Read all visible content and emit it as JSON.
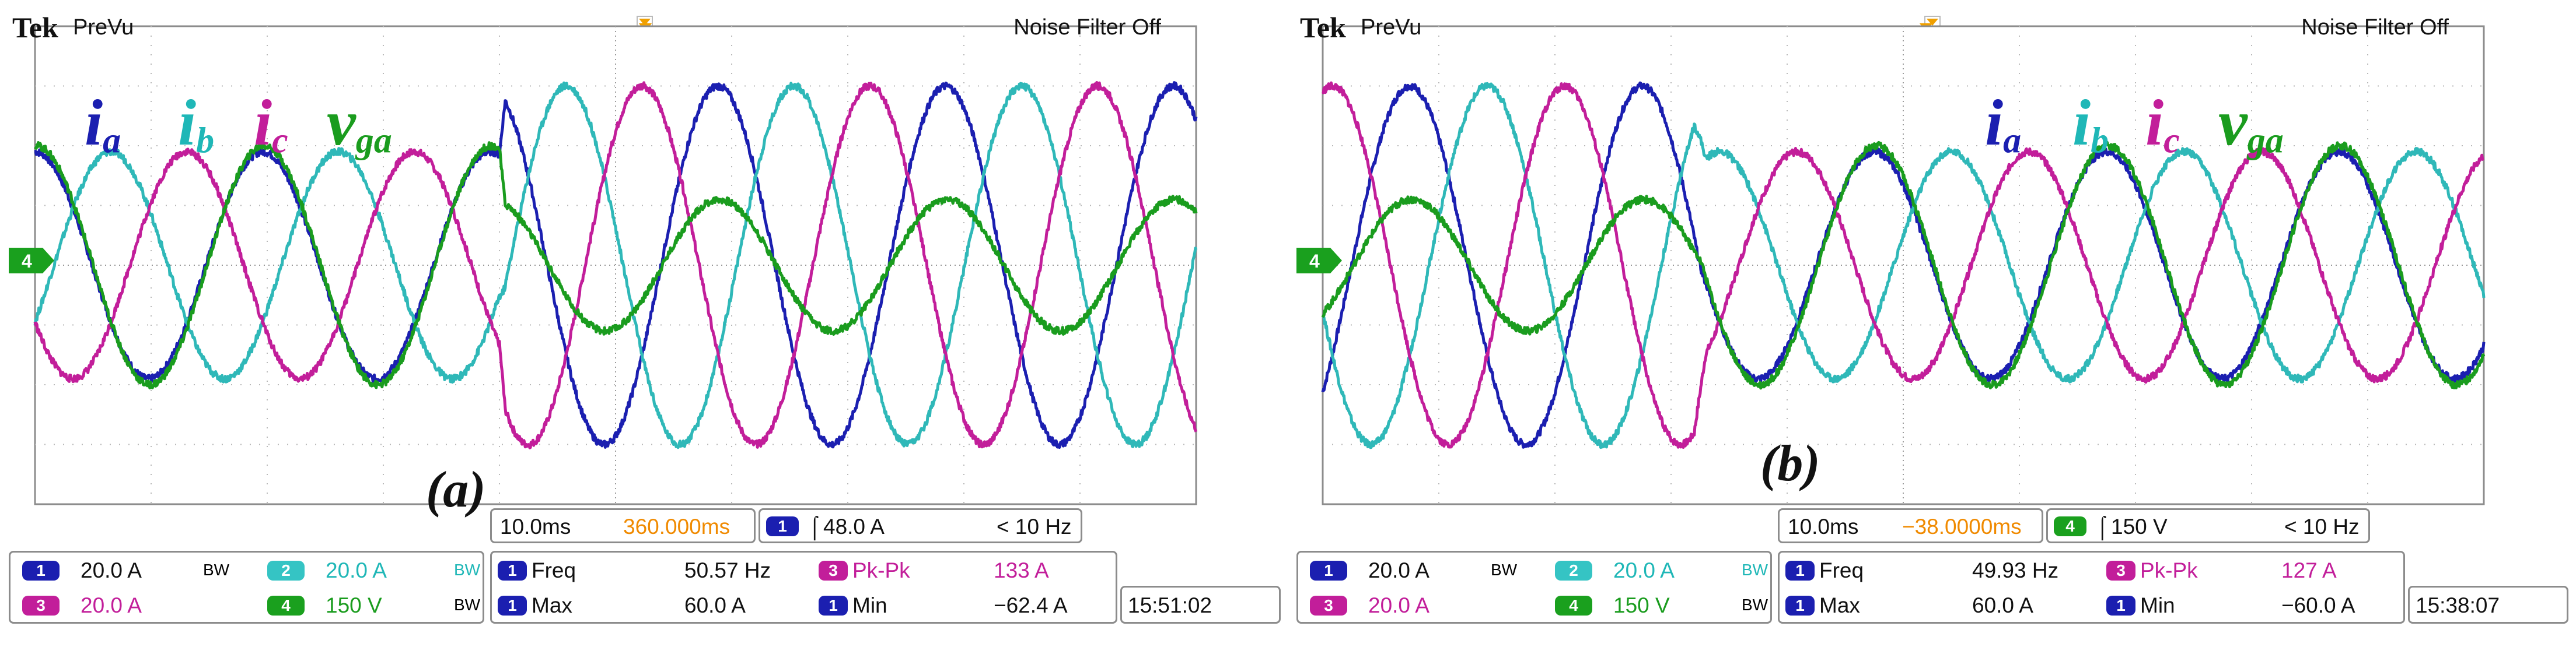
{
  "labels": {
    "ia": "i",
    "ia_sub": "a",
    "ib": "i",
    "ib_sub": "b",
    "ic": "i",
    "ic_sub": "c",
    "vga": "v",
    "vga_sub": "ga"
  },
  "scopes": [
    {
      "tag": "(a)",
      "brand": "Tek",
      "mode": "PreVu",
      "noise_filter": "Noise Filter Off",
      "timebase": "10.0ms",
      "delay": "360.000ms",
      "trigger": {
        "channel": "1",
        "level": "48.0 A",
        "freq": "< 10 Hz"
      },
      "channels": [
        {
          "id": "1",
          "scale": "20.0 A",
          "bw": "BW"
        },
        {
          "id": "2",
          "scale": "20.0 A",
          "bw": "BW"
        },
        {
          "id": "3",
          "scale": "20.0 A",
          "bw": ""
        },
        {
          "id": "4",
          "scale": "150 V",
          "bw": "BW"
        }
      ],
      "measurements": [
        {
          "ch": "1",
          "name": "Freq",
          "value": "50.57 Hz"
        },
        {
          "ch": "3",
          "name": "Pk-Pk",
          "value": "133 A"
        },
        {
          "ch": "1",
          "name": "Max",
          "value": "60.0 A"
        },
        {
          "ch": "1",
          "name": "Min",
          "value": "−62.4 A"
        }
      ],
      "clock": "15:51:02",
      "ground_marker": "4"
    },
    {
      "tag": "(b)",
      "brand": "Tek",
      "mode": "PreVu",
      "noise_filter": "Noise Filter Off",
      "timebase": "10.0ms",
      "delay": "−38.0000ms",
      "trigger": {
        "channel": "4",
        "level": "150 V",
        "freq": "< 10 Hz"
      },
      "channels": [
        {
          "id": "1",
          "scale": "20.0 A",
          "bw": "BW"
        },
        {
          "id": "2",
          "scale": "20.0 A",
          "bw": "BW"
        },
        {
          "id": "3",
          "scale": "20.0 A",
          "bw": ""
        },
        {
          "id": "4",
          "scale": "150 V",
          "bw": "BW"
        }
      ],
      "measurements": [
        {
          "ch": "1",
          "name": "Freq",
          "value": "49.93 Hz"
        },
        {
          "ch": "3",
          "name": "Pk-Pk",
          "value": "127 A"
        },
        {
          "ch": "1",
          "name": "Max",
          "value": "60.0 A"
        },
        {
          "ch": "1",
          "name": "Min",
          "value": "−60.0 A"
        }
      ],
      "clock": "15:38:07",
      "ground_marker": "4"
    }
  ],
  "chart_data": [
    {
      "type": "line",
      "x_unit": "div",
      "xlim": [
        0,
        10
      ],
      "ylim": [
        -4,
        4
      ],
      "grid": true,
      "series": [
        {
          "name": "ia",
          "color": "#1b1fb0",
          "x": [
            0,
            4,
            4.05,
            10
          ],
          "amplitude": [
            1.9,
            1.9,
            3.0,
            3.0
          ],
          "cycles_per_div": 0.51,
          "phase_deg": 90
        },
        {
          "name": "ib",
          "color": "#2fb8b8",
          "x": [
            0,
            4,
            4.05,
            10
          ],
          "amplitude": [
            1.9,
            1.9,
            3.0,
            3.0
          ],
          "cycles_per_div": 0.51,
          "phase_deg": -30
        },
        {
          "name": "ic",
          "color": "#c21e9a",
          "x": [
            0,
            4,
            4.05,
            10
          ],
          "amplitude": [
            1.9,
            1.9,
            3.0,
            3.0
          ],
          "cycles_per_div": 0.51,
          "phase_deg": 210
        },
        {
          "name": "vga",
          "color": "#1a9c1e",
          "x": [
            0,
            4,
            4.05,
            10
          ],
          "amplitude": [
            2.0,
            2.0,
            1.1,
            1.1
          ],
          "cycles_per_div": 0.51,
          "phase_deg": 88
        }
      ]
    },
    {
      "type": "line",
      "x_unit": "div",
      "xlim": [
        0,
        10
      ],
      "ylim": [
        -4,
        4
      ],
      "grid": true,
      "series": [
        {
          "name": "ia",
          "color": "#1b1fb0",
          "x": [
            0,
            3.2,
            3.3,
            10
          ],
          "amplitude": [
            3.0,
            3.0,
            1.9,
            1.9
          ],
          "cycles_per_div": 0.5,
          "phase_deg": -45
        },
        {
          "name": "ib",
          "color": "#2fb8b8",
          "x": [
            0,
            3.2,
            3.3,
            10
          ],
          "amplitude": [
            3.0,
            3.0,
            1.9,
            1.9
          ],
          "cycles_per_div": 0.5,
          "phase_deg": 195
        },
        {
          "name": "ic",
          "color": "#c21e9a",
          "x": [
            0,
            3.2,
            3.3,
            10
          ],
          "amplitude": [
            3.0,
            3.0,
            1.9,
            1.9
          ],
          "cycles_per_div": 0.5,
          "phase_deg": 75
        },
        {
          "name": "vga",
          "color": "#1a9c1e",
          "x": [
            0,
            3.2,
            3.3,
            10
          ],
          "amplitude": [
            1.1,
            1.1,
            2.0,
            2.0
          ],
          "cycles_per_div": 0.5,
          "phase_deg": -48
        }
      ]
    }
  ]
}
